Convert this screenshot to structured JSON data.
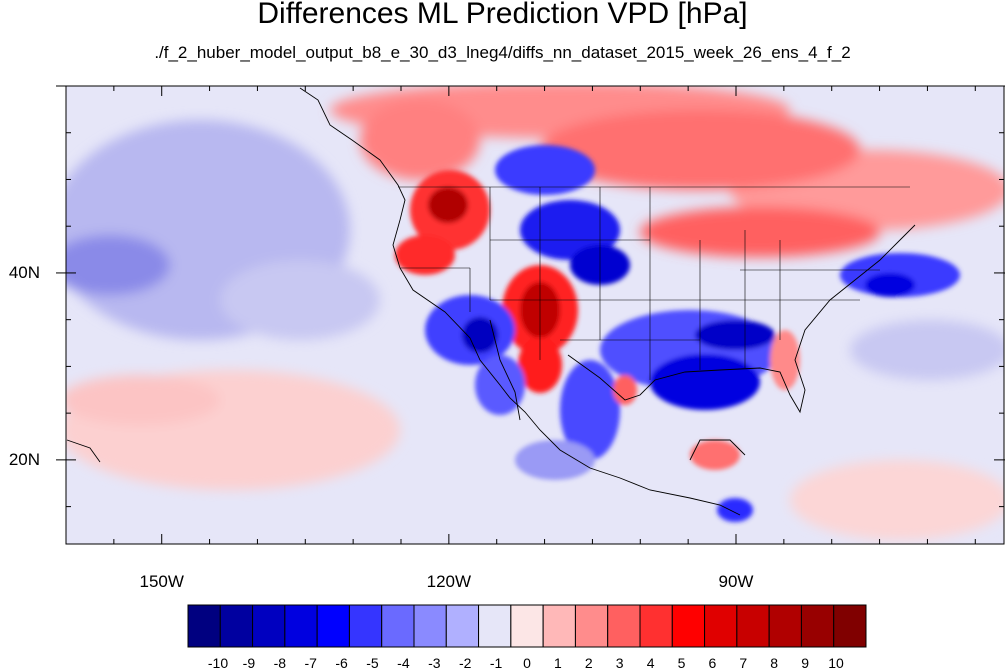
{
  "title": "Differences ML Prediction VPD [hPa]",
  "subtitle": "./f_2_huber_model_output_b8_e_30_d3_lneg4/diffs_nn_dataset_2015_week_26_ens_4_f_2",
  "map": {
    "lon_range": [
      -160,
      -62
    ],
    "lat_range": [
      11,
      60
    ],
    "lon_labels": [
      {
        "lon": -150,
        "text": "150W"
      },
      {
        "lon": -120,
        "text": "120W"
      },
      {
        "lon": -90,
        "text": "90W"
      }
    ],
    "lat_labels": [
      {
        "lat": 40,
        "text": "40N"
      },
      {
        "lat": 20,
        "text": "20N"
      }
    ],
    "background_color": "#e8e8f8"
  },
  "colorbar": {
    "colors": [
      "#000080",
      "#0000a0",
      "#0000c0",
      "#0000e0",
      "#0000ff",
      "#3535ff",
      "#6a6aff",
      "#8a8aff",
      "#b0b0ff",
      "#e6e6f8",
      "#fce6e6",
      "#ffb8b8",
      "#ff8c8c",
      "#ff6060",
      "#ff3030",
      "#ff0000",
      "#e00000",
      "#c80000",
      "#b00000",
      "#980000",
      "#800000"
    ],
    "labels": [
      "-10",
      "-9",
      "-8",
      "-7",
      "-6",
      "-5",
      "-4",
      "-3",
      "-2",
      "-1",
      "0",
      "1",
      "2",
      "3",
      "4",
      "5",
      "6",
      "7",
      "8",
      "9",
      "10"
    ]
  }
}
